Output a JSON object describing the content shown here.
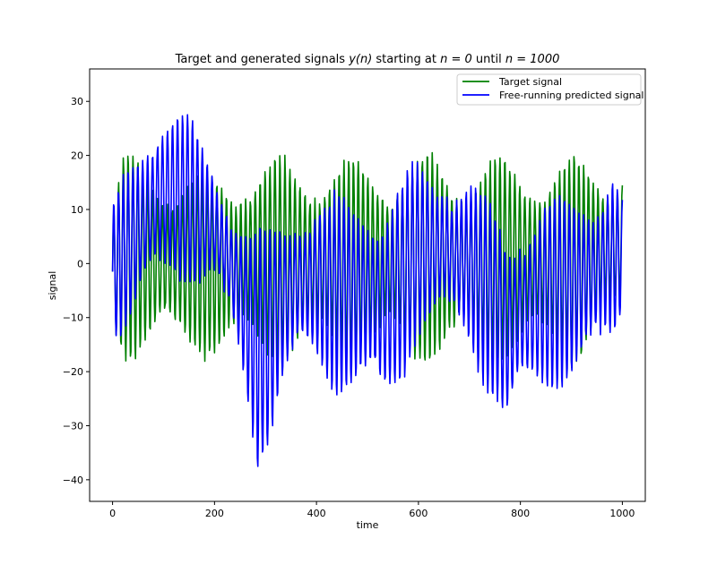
{
  "chart_data": {
    "type": "line",
    "title_prefix": "Target and generated signals ",
    "title_math_1": "y(n)",
    "title_mid_1": " starting at ",
    "title_math_2": "n = 0",
    "title_mid_2": " until ",
    "title_math_3": "n = 1000",
    "xlabel": "time",
    "ylabel": "signal",
    "xlim": [
      -45,
      1045
    ],
    "ylim": [
      -44,
      36
    ],
    "x_ticks": [
      0,
      200,
      400,
      600,
      800,
      1000
    ],
    "x_tick_labels": [
      "0",
      "200",
      "400",
      "600",
      "800",
      "1000"
    ],
    "y_ticks": [
      -40,
      -30,
      -20,
      -10,
      0,
      10,
      20,
      30
    ],
    "y_tick_labels": [
      "−40",
      "−30",
      "−20",
      "−10",
      "0",
      "10",
      "20",
      "30"
    ],
    "legend_position": "upper-right",
    "x_range": [
      0,
      1000
    ],
    "series": [
      {
        "name": "Target signal",
        "color": "#008000",
        "description": "quasi-periodic oscillation, period ~10 samples, amplitude roughly +/-20",
        "envelope_max": [
          [
            0,
            12
          ],
          [
            20,
            22
          ],
          [
            100,
            20
          ],
          [
            200,
            18
          ],
          [
            250,
            21
          ],
          [
            300,
            21
          ],
          [
            400,
            21
          ],
          [
            500,
            21
          ],
          [
            600,
            21
          ],
          [
            620,
            22
          ],
          [
            700,
            21
          ],
          [
            800,
            21
          ],
          [
            900,
            21
          ],
          [
            1000,
            21
          ]
        ],
        "envelope_min": [
          [
            0,
            -15
          ],
          [
            20,
            -19
          ],
          [
            100,
            -18
          ],
          [
            200,
            -19
          ],
          [
            250,
            -20
          ],
          [
            300,
            -20
          ],
          [
            400,
            -20
          ],
          [
            500,
            -20
          ],
          [
            600,
            -20
          ],
          [
            700,
            -20
          ],
          [
            800,
            -20
          ],
          [
            900,
            -20
          ],
          [
            1000,
            -14
          ]
        ]
      },
      {
        "name": "Free-running predicted signal",
        "color": "#0000ff",
        "description": "oscillation with slowly varying offset; rises to ~32 near n=90, drops to ~-40 near n=285, recovers near n=600, drops to ~-36 near n=770",
        "envelope_max": [
          [
            0,
            12
          ],
          [
            30,
            20
          ],
          [
            60,
            27
          ],
          [
            90,
            32
          ],
          [
            110,
            31
          ],
          [
            150,
            28
          ],
          [
            200,
            20
          ],
          [
            230,
            14
          ],
          [
            260,
            10
          ],
          [
            285,
            8
          ],
          [
            320,
            10
          ],
          [
            360,
            14
          ],
          [
            400,
            14
          ],
          [
            450,
            14
          ],
          [
            500,
            16
          ],
          [
            550,
            16
          ],
          [
            600,
            20
          ],
          [
            640,
            20
          ],
          [
            700,
            18
          ],
          [
            740,
            13
          ],
          [
            770,
            10
          ],
          [
            800,
            12
          ],
          [
            850,
            14
          ],
          [
            900,
            15
          ],
          [
            950,
            18
          ],
          [
            980,
            21
          ],
          [
            1000,
            13
          ]
        ],
        "envelope_min": [
          [
            0,
            -15
          ],
          [
            30,
            -14
          ],
          [
            60,
            -10
          ],
          [
            90,
            -8
          ],
          [
            110,
            -6
          ],
          [
            150,
            -5
          ],
          [
            200,
            -6
          ],
          [
            230,
            -14
          ],
          [
            260,
            -27
          ],
          [
            285,
            -40
          ],
          [
            300,
            -37
          ],
          [
            330,
            -27
          ],
          [
            360,
            -22
          ],
          [
            400,
            -22
          ],
          [
            450,
            -26
          ],
          [
            500,
            -28
          ],
          [
            530,
            -32
          ],
          [
            560,
            -26
          ],
          [
            600,
            -15
          ],
          [
            650,
            -14
          ],
          [
            700,
            -18
          ],
          [
            740,
            -26
          ],
          [
            760,
            -30
          ],
          [
            770,
            -36
          ],
          [
            800,
            -30
          ],
          [
            850,
            -26
          ],
          [
            900,
            -24
          ],
          [
            950,
            -22
          ],
          [
            980,
            -19
          ],
          [
            1000,
            -10
          ]
        ]
      }
    ]
  }
}
